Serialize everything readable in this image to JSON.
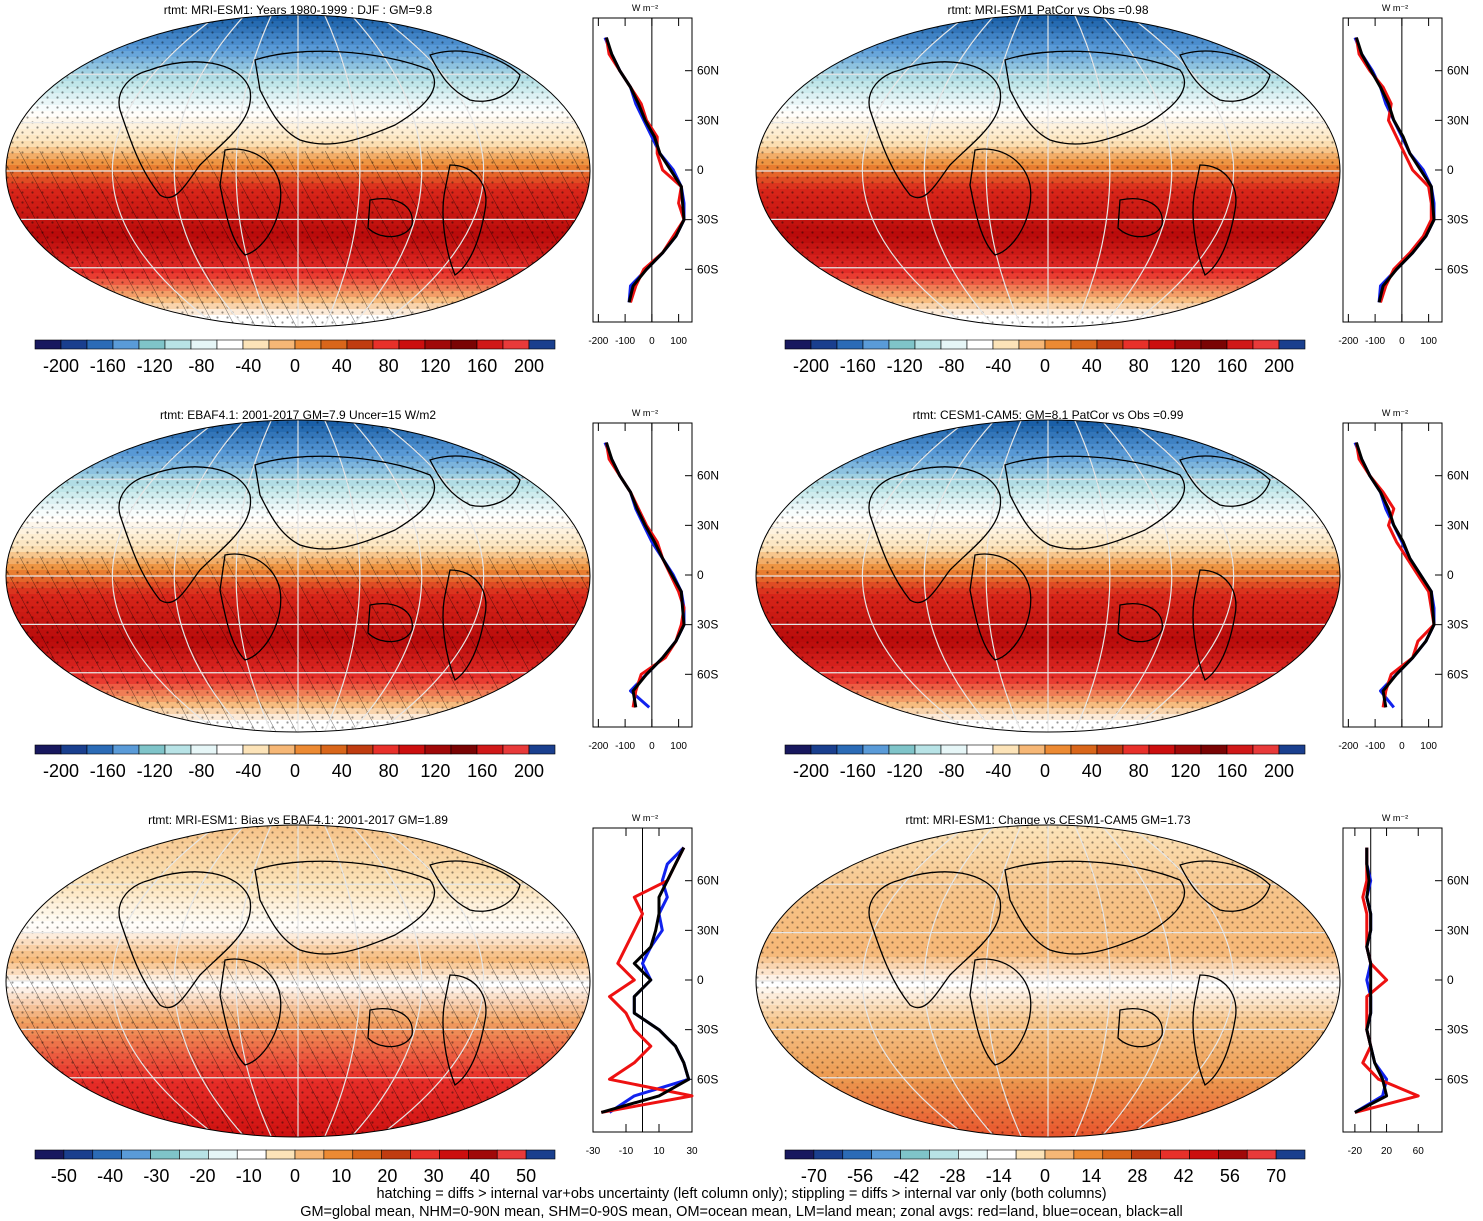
{
  "figure": {
    "footer": [
      "hatching = diffs > internal var+obs uncertainty (left column only); stippling = diffs > internal var only (both columns)",
      "GM=global mean, NHM=0-90N mean, SHM=0-90S mean, OM=ocean mean, LM=land mean; zonal avgs: red=land, blue=ocean, black=all"
    ],
    "zonal_units": "W m⁻²",
    "lat_ticks": [
      "60N",
      "30N",
      "0",
      "30S",
      "60S"
    ],
    "series_colors": {
      "land": "#ee1111",
      "ocean": "#1122ee",
      "all": "#000000"
    },
    "palette_full": [
      "#18185e",
      "#1a3f8e",
      "#2b6bb6",
      "#5a9bd8",
      "#7fc4c9",
      "#b8e3e6",
      "#e6f6f7",
      "#ffffff",
      "#fce3b8",
      "#f6b776",
      "#ec8a33",
      "#d9661a",
      "#c03c10",
      "#e8302a",
      "#cc0e0e",
      "#a00808",
      "#7a0404",
      "#d01818",
      "#e83a3a",
      "#1a3f8e"
    ],
    "palette_short": [
      "#18185e",
      "#1a3f8e",
      "#2b6bb6",
      "#5a9bd8",
      "#7fc4c9",
      "#b8e3e6",
      "#e6f6f7",
      "#ffffff",
      "#fce3b8",
      "#f6b776",
      "#ec8a33",
      "#d9661a",
      "#c03c10",
      "#e8302a",
      "#cc0e0e",
      "#a00808",
      "#e83a3a",
      "#1a3f8e"
    ]
  },
  "chart_data": [
    {
      "type": "heatmap",
      "title": "rtmt: MRI-ESM1: Years 1980-1999 : DJF : GM=9.8",
      "colorbar_ticks": [
        "-200",
        "-160",
        "-120",
        "-80",
        "-40",
        "0",
        "40",
        "80",
        "120",
        "160",
        "200"
      ],
      "zonal_xticks": [
        "-200",
        "-100",
        "0",
        "100"
      ],
      "zonal_xlim": [
        -220,
        150
      ],
      "hatching": true,
      "zonal_series": {
        "latitudes": [
          80,
          70,
          60,
          50,
          40,
          30,
          20,
          10,
          0,
          -10,
          -20,
          -30,
          -40,
          -50,
          -60,
          -70,
          -80
        ],
        "land": [
          -170,
          -160,
          -120,
          -80,
          -40,
          -20,
          20,
          20,
          40,
          110,
          100,
          120,
          80,
          40,
          -30,
          -60,
          -80
        ],
        "ocean": [
          -175,
          -150,
          -120,
          -80,
          -60,
          -30,
          0,
          30,
          80,
          110,
          120,
          120,
          90,
          40,
          -20,
          -80,
          -85
        ],
        "all": [
          -170,
          -150,
          -120,
          -80,
          -50,
          -25,
          10,
          30,
          70,
          110,
          115,
          120,
          90,
          40,
          -20,
          -70,
          -85
        ]
      }
    },
    {
      "type": "heatmap",
      "title": "rtmt: MRI-ESM1 PatCor vs Obs =0.98",
      "colorbar_ticks": [
        "-200",
        "-160",
        "-120",
        "-80",
        "-40",
        "0",
        "40",
        "80",
        "120",
        "160",
        "200"
      ],
      "zonal_xticks": [
        "-200",
        "-100",
        "0",
        "100"
      ],
      "zonal_xlim": [
        -220,
        150
      ],
      "hatching": false,
      "zonal_series": {
        "latitudes": [
          80,
          70,
          60,
          50,
          40,
          30,
          20,
          10,
          0,
          -10,
          -20,
          -30,
          -40,
          -50,
          -60,
          -70,
          -80
        ],
        "land": [
          -170,
          -160,
          -120,
          -70,
          -40,
          -50,
          -20,
          10,
          40,
          100,
          110,
          110,
          80,
          30,
          -30,
          -60,
          -80
        ],
        "ocean": [
          -175,
          -150,
          -110,
          -80,
          -60,
          -30,
          0,
          30,
          80,
          110,
          120,
          120,
          90,
          40,
          -20,
          -80,
          -85
        ],
        "all": [
          -170,
          -150,
          -115,
          -80,
          -50,
          -30,
          5,
          30,
          70,
          110,
          115,
          120,
          90,
          40,
          -20,
          -70,
          -85
        ]
      }
    },
    {
      "type": "heatmap",
      "title": "rtmt: EBAF4.1: 2001-2017 GM=7.9 Uncer=15 W/m2",
      "colorbar_ticks": [
        "-200",
        "-160",
        "-120",
        "-80",
        "-40",
        "0",
        "40",
        "80",
        "120",
        "160",
        "200"
      ],
      "zonal_xticks": [
        "-200",
        "-100",
        "0",
        "100"
      ],
      "zonal_xlim": [
        -220,
        150
      ],
      "hatching": true,
      "zonal_series": {
        "latitudes": [
          80,
          70,
          60,
          50,
          40,
          30,
          20,
          10,
          0,
          -10,
          -20,
          -30,
          -40,
          -50,
          -60,
          -70,
          -80
        ],
        "land": [
          -170,
          -160,
          -120,
          -80,
          -50,
          -20,
          20,
          40,
          70,
          100,
          120,
          110,
          90,
          50,
          -40,
          -60,
          -70
        ],
        "ocean": [
          -175,
          -150,
          -120,
          -80,
          -60,
          -30,
          0,
          40,
          80,
          110,
          120,
          120,
          90,
          40,
          -20,
          -80,
          -10
        ],
        "all": [
          -170,
          -150,
          -120,
          -80,
          -55,
          -25,
          10,
          40,
          75,
          110,
          115,
          120,
          90,
          40,
          -20,
          -70,
          -60
        ]
      }
    },
    {
      "type": "heatmap",
      "title": "rtmt: CESM1-CAM5: GM=8.1 PatCor vs Obs =0.99",
      "colorbar_ticks": [
        "-200",
        "-160",
        "-120",
        "-80",
        "-40",
        "0",
        "40",
        "80",
        "120",
        "160",
        "200"
      ],
      "zonal_xticks": [
        "-200",
        "-100",
        "0",
        "100"
      ],
      "zonal_xlim": [
        -220,
        150
      ],
      "hatching": false,
      "zonal_series": {
        "latitudes": [
          80,
          70,
          60,
          50,
          40,
          30,
          20,
          10,
          0,
          -10,
          -20,
          -30,
          -40,
          -50,
          -60,
          -70,
          -80
        ],
        "land": [
          -170,
          -160,
          -120,
          -70,
          -30,
          -50,
          -20,
          20,
          60,
          100,
          110,
          120,
          60,
          40,
          -40,
          -60,
          -70
        ],
        "ocean": [
          -175,
          -150,
          -120,
          -80,
          -60,
          -30,
          0,
          30,
          70,
          110,
          120,
          120,
          90,
          40,
          -20,
          -80,
          -30
        ],
        "all": [
          -170,
          -150,
          -120,
          -80,
          -50,
          -30,
          5,
          30,
          70,
          110,
          115,
          120,
          90,
          40,
          -20,
          -70,
          -60
        ]
      }
    },
    {
      "type": "heatmap",
      "title": "rtmt: MRI-ESM1: Bias vs EBAF4.1: 2001-2017 GM=1.89",
      "colorbar_ticks": [
        "-50",
        "-40",
        "-30",
        "-20",
        "-10",
        "0",
        "10",
        "20",
        "30",
        "40",
        "50"
      ],
      "zonal_xticks": [
        "-30",
        "-10",
        "10",
        "30"
      ],
      "zonal_xlim": [
        -30,
        30
      ],
      "hatching": true,
      "zonal_series": {
        "latitudes": [
          80,
          70,
          60,
          50,
          40,
          30,
          20,
          10,
          0,
          -10,
          -20,
          -30,
          -40,
          -50,
          -60,
          -70,
          -80
        ],
        "land": [
          25,
          20,
          15,
          -5,
          0,
          -5,
          -10,
          -15,
          -5,
          -20,
          -10,
          -5,
          5,
          -5,
          -20,
          30,
          -25
        ],
        "ocean": [
          25,
          15,
          12,
          15,
          10,
          12,
          5,
          0,
          5,
          -5,
          -5,
          10,
          20,
          25,
          28,
          -5,
          -20
        ],
        "all": [
          25,
          20,
          15,
          10,
          10,
          8,
          5,
          -5,
          5,
          -5,
          -5,
          10,
          20,
          25,
          28,
          10,
          -25
        ]
      }
    },
    {
      "type": "heatmap",
      "title": "rtmt: MRI-ESM1: Change vs CESM1-CAM5 GM=1.73",
      "colorbar_ticks": [
        "-70",
        "-56",
        "-42",
        "-28",
        "-14",
        "0",
        "14",
        "28",
        "42",
        "56",
        "70"
      ],
      "zonal_xticks": [
        "-20",
        "20",
        "60"
      ],
      "zonal_xlim": [
        -35,
        90
      ],
      "hatching": false,
      "zonal_series": {
        "latitudes": [
          80,
          70,
          60,
          50,
          40,
          30,
          20,
          10,
          0,
          -10,
          -20,
          -30,
          -40,
          -50,
          -60,
          -70,
          -80
        ],
        "land": [
          -5,
          -5,
          -5,
          -10,
          -5,
          -5,
          -5,
          0,
          20,
          -5,
          -5,
          -5,
          0,
          -10,
          10,
          60,
          -20
        ],
        "ocean": [
          -5,
          -5,
          0,
          -5,
          0,
          0,
          -5,
          0,
          -5,
          0,
          0,
          -5,
          0,
          5,
          20,
          15,
          -20
        ],
        "all": [
          -5,
          -5,
          -2,
          -5,
          0,
          0,
          -5,
          0,
          0,
          0,
          0,
          -5,
          0,
          5,
          15,
          20,
          -20
        ]
      }
    }
  ]
}
